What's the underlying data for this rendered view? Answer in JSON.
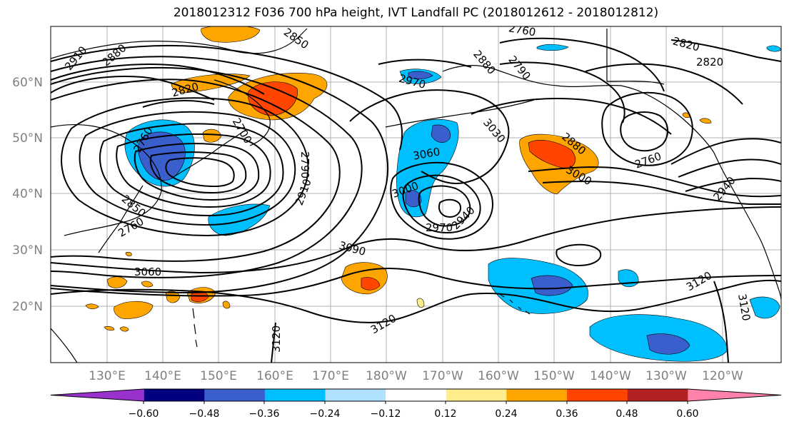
{
  "title": "2018012312 F036 700 hPa height, IVT Landfall PC (2018012612 - 2018012812)",
  "lat_labels": [
    "60°N",
    "50°N",
    "40°N",
    "30°N",
    "20°N"
  ],
  "lon_labels": [
    "130°E",
    "140°E",
    "150°E",
    "160°E",
    "170°E",
    "180°W",
    "170°W",
    "160°W",
    "150°W",
    "140°W",
    "130°W",
    "120°W"
  ],
  "colorbar": {
    "colors": [
      "#9932cc",
      "#000080",
      "#3a5fcd",
      "#00bfff",
      "#b0e2ff",
      "#ffffff",
      "#ffec8b",
      "#ffa500",
      "#ff4500",
      "#b22222",
      "#ff82ab"
    ],
    "tick_labels": [
      "−0.60",
      "−0.48",
      "−0.36",
      "−0.24",
      "−0.12",
      "0.12",
      "0.24",
      "0.36",
      "0.48",
      "0.60"
    ]
  },
  "contour_labels": [
    "2910",
    "2880",
    "2850",
    "2820",
    "2760",
    "2790",
    "2880",
    "2820",
    "2820",
    "2760",
    "2970",
    "2700",
    "2790",
    "2910",
    "2760",
    "2850",
    "3060",
    "3000",
    "3030",
    "2880",
    "2760",
    "3000",
    "2940",
    "2970",
    "2940",
    "3090",
    "3060",
    "3120",
    "3120",
    "3120",
    "3120"
  ]
}
